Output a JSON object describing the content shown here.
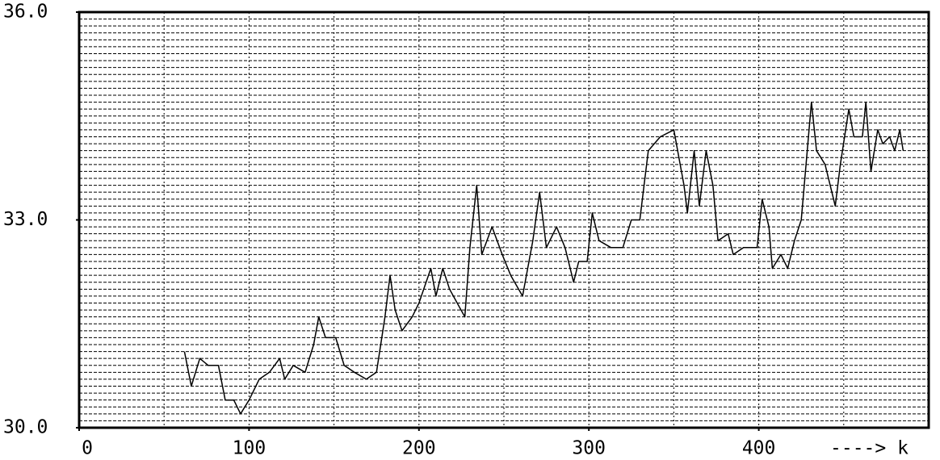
{
  "chart_data": {
    "type": "line",
    "xlabel": "----> k",
    "xlim": [
      0,
      500
    ],
    "xticks": [
      0,
      100,
      200,
      300,
      400
    ],
    "xgrid": [
      50,
      100,
      150,
      200,
      250,
      300,
      350,
      400,
      450
    ],
    "ylim": [
      30,
      36
    ],
    "yticks": [
      {
        "value": 30,
        "label": "30.0"
      },
      {
        "value": 33,
        "label": "33.0"
      },
      {
        "value": 36,
        "label": "36.0"
      }
    ],
    "ygrid": [
      30.1,
      30.2,
      30.3,
      30.4,
      30.5,
      30.6,
      30.7,
      30.8,
      30.9,
      31,
      31.1,
      31.2,
      31.3,
      31.4,
      31.5,
      31.6,
      31.7,
      31.8,
      31.9,
      32,
      32.1,
      32.2,
      32.3,
      32.4,
      32.5,
      32.6,
      32.7,
      32.8,
      32.9,
      33,
      33.1,
      33.2,
      33.3,
      33.4,
      33.5,
      33.6,
      33.7,
      33.8,
      33.9,
      34,
      34.1,
      34.2,
      34.3,
      34.4,
      34.5,
      34.6,
      34.7,
      34.8,
      34.9,
      35,
      35.1,
      35.2,
      35.3,
      35.4,
      35.5,
      35.6,
      35.7,
      35.8,
      35.9
    ],
    "grid": true,
    "color": "#000000",
    "x": [
      62,
      66,
      71,
      76,
      82,
      86,
      91,
      95,
      100,
      106,
      112,
      118,
      121,
      126,
      133,
      138,
      141,
      145,
      151,
      156,
      162,
      169,
      175,
      180,
      183,
      186,
      190,
      196,
      200,
      207,
      210,
      214,
      218,
      227,
      230,
      234,
      237,
      243,
      249,
      254,
      261,
      267,
      271,
      275,
      281,
      286,
      291,
      294,
      299,
      302,
      306,
      313,
      320,
      325,
      330,
      335,
      342,
      350,
      356,
      358,
      362,
      365,
      369,
      373,
      376,
      382,
      385,
      391,
      399,
      402,
      406,
      408,
      413,
      417,
      421,
      425,
      431,
      434,
      439,
      445,
      448,
      453,
      456,
      461,
      463,
      466,
      470,
      473,
      477,
      480,
      483,
      485
    ],
    "values": [
      31.1,
      30.6,
      31.0,
      30.9,
      30.9,
      30.4,
      30.4,
      30.2,
      30.4,
      30.7,
      30.8,
      31.0,
      30.7,
      30.9,
      30.8,
      31.2,
      31.6,
      31.3,
      31.3,
      30.9,
      30.8,
      30.7,
      30.8,
      31.6,
      32.2,
      31.7,
      31.4,
      31.6,
      31.8,
      32.3,
      31.9,
      32.3,
      32.0,
      31.6,
      32.6,
      33.5,
      32.5,
      32.9,
      32.5,
      32.2,
      31.9,
      32.7,
      33.4,
      32.6,
      32.9,
      32.6,
      32.1,
      32.4,
      32.4,
      33.1,
      32.7,
      32.6,
      32.6,
      33.0,
      33.0,
      34.0,
      34.2,
      34.3,
      33.5,
      33.1,
      34.0,
      33.2,
      34.0,
      33.5,
      32.7,
      32.8,
      32.5,
      32.6,
      32.6,
      33.3,
      32.9,
      32.3,
      32.5,
      32.3,
      32.7,
      33.0,
      34.7,
      34.0,
      33.8,
      33.2,
      33.8,
      34.6,
      34.2,
      34.2,
      34.7,
      33.7,
      34.3,
      34.1,
      34.2,
      34.0,
      34.3,
      34.0
    ]
  }
}
